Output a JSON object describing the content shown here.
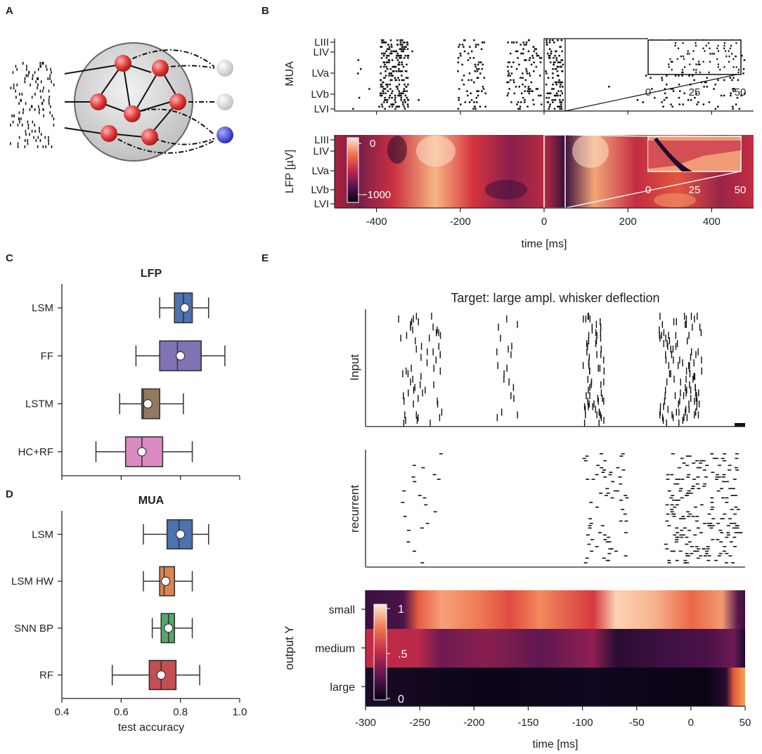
{
  "panels": {
    "a": "A",
    "b": "B",
    "c": "C",
    "d": "D",
    "e": "E"
  },
  "panel_b": {
    "mua_ylabel": "MUA",
    "lfp_ylabel": "LFP [µV]",
    "layers": [
      "LIII",
      "LIV",
      "LVa",
      "LVb",
      "LVI"
    ],
    "xticks": [
      "-400",
      "-200",
      "0",
      "200",
      "400"
    ],
    "xlabel": "time [ms]",
    "inset_ticks": [
      "0",
      "25",
      "50"
    ],
    "colorbar_ticks": [
      "0",
      "−1000"
    ]
  },
  "chart_data": [
    {
      "type": "boxplot",
      "panel": "C",
      "title": "LFP",
      "xlabel": "test accuracy",
      "xlim": [
        0.4,
        1.0
      ],
      "categories": [
        "LSM",
        "FF",
        "LSTM",
        "HC+RF"
      ],
      "colors": [
        "#4c72b0",
        "#8172b3",
        "#937860",
        "#da8bc3"
      ],
      "series": [
        {
          "name": "LSM",
          "whisker_low": 0.73,
          "q1": 0.78,
          "median": 0.81,
          "q3": 0.84,
          "whisker_high": 0.895,
          "mean": 0.815
        },
        {
          "name": "FF",
          "whisker_low": 0.65,
          "q1": 0.73,
          "median": 0.79,
          "q3": 0.87,
          "whisker_high": 0.95,
          "mean": 0.8
        },
        {
          "name": "LSTM",
          "whisker_low": 0.595,
          "q1": 0.67,
          "median": 0.675,
          "q3": 0.73,
          "whisker_high": 0.81,
          "mean": 0.69
        },
        {
          "name": "HC+RF",
          "whisker_low": 0.515,
          "q1": 0.615,
          "median": 0.67,
          "q3": 0.74,
          "whisker_high": 0.84,
          "mean": 0.67
        }
      ]
    },
    {
      "type": "boxplot",
      "panel": "D",
      "title": "MUA",
      "xlabel": "test accuracy",
      "xlim": [
        0.4,
        1.0
      ],
      "xticks": [
        "0.4",
        "0.6",
        "0.8",
        "1.0"
      ],
      "categories": [
        "LSM",
        "LSM HW",
        "SNN BP",
        "RF"
      ],
      "colors": [
        "#4c72b0",
        "#dd8452",
        "#55a868",
        "#c44e52"
      ],
      "series": [
        {
          "name": "LSM",
          "whisker_low": 0.675,
          "q1": 0.755,
          "median": 0.795,
          "q3": 0.84,
          "whisker_high": 0.895,
          "mean": 0.8
        },
        {
          "name": "LSM HW",
          "whisker_low": 0.675,
          "q1": 0.73,
          "median": 0.745,
          "q3": 0.78,
          "whisker_high": 0.84,
          "mean": 0.75
        },
        {
          "name": "SNN BP",
          "whisker_low": 0.705,
          "q1": 0.735,
          "median": 0.76,
          "q3": 0.78,
          "whisker_high": 0.84,
          "mean": 0.76
        },
        {
          "name": "RF",
          "whisker_low": 0.57,
          "q1": 0.695,
          "median": 0.735,
          "q3": 0.785,
          "whisker_high": 0.865,
          "mean": 0.735
        }
      ]
    },
    {
      "type": "heatmap",
      "panel": "E",
      "title": "Target: large ampl. whisker deflection",
      "raster_labels": [
        "Input",
        "recurrent"
      ],
      "ylabel": "output Y",
      "rows": [
        "small",
        "medium",
        "large"
      ],
      "xlabel": "time [ms]",
      "x": [
        -300,
        -250,
        -200,
        -150,
        -100,
        -50,
        0,
        50
      ],
      "colorbar_ticks": [
        "1",
        ".5",
        "0"
      ]
    }
  ]
}
